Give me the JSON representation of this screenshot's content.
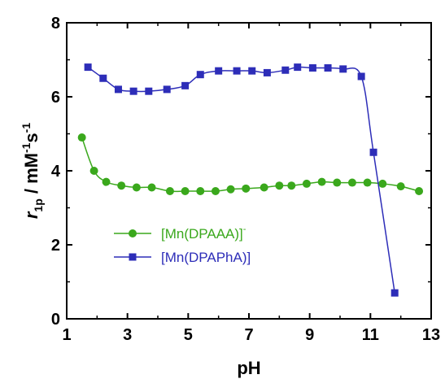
{
  "chart_data": {
    "type": "line",
    "xlabel": "pH",
    "ylabel": {
      "main": "r",
      "sub": "1p",
      "unit_prefix": " / mM",
      "unit_sup1": "-1",
      "unit_mid": "s",
      "unit_sup2": "-1"
    },
    "xlim": [
      1,
      13
    ],
    "ylim": [
      0,
      8
    ],
    "xticks": [
      1,
      3,
      5,
      7,
      9,
      11,
      13
    ],
    "yticks": [
      0,
      2,
      4,
      6,
      8
    ],
    "grid": false,
    "legend_position": "center-left",
    "series": [
      {
        "name": "[Mn(DPAAA)]",
        "name_sup": "-",
        "color": "#3aa81c",
        "marker": "circle",
        "points": [
          [
            1.5,
            4.9
          ],
          [
            1.9,
            4.0
          ],
          [
            2.3,
            3.7
          ],
          [
            2.8,
            3.6
          ],
          [
            3.3,
            3.55
          ],
          [
            3.8,
            3.55
          ],
          [
            4.4,
            3.45
          ],
          [
            4.9,
            3.45
          ],
          [
            5.4,
            3.45
          ],
          [
            5.9,
            3.45
          ],
          [
            6.4,
            3.5
          ],
          [
            6.9,
            3.52
          ],
          [
            7.5,
            3.55
          ],
          [
            8.0,
            3.6
          ],
          [
            8.4,
            3.6
          ],
          [
            8.9,
            3.65
          ],
          [
            9.4,
            3.7
          ],
          [
            9.9,
            3.68
          ],
          [
            10.4,
            3.68
          ],
          [
            10.9,
            3.68
          ],
          [
            11.4,
            3.65
          ],
          [
            12.0,
            3.58
          ],
          [
            12.6,
            3.45
          ]
        ]
      },
      {
        "name": "[Mn(DPAPhA)]",
        "name_sup": "",
        "color": "#2d2db8",
        "marker": "square",
        "points": [
          [
            1.7,
            6.8
          ],
          [
            2.2,
            6.5
          ],
          [
            2.7,
            6.2
          ],
          [
            3.2,
            6.15
          ],
          [
            3.7,
            6.15
          ],
          [
            4.3,
            6.2
          ],
          [
            4.9,
            6.3
          ],
          [
            5.4,
            6.6
          ],
          [
            6.0,
            6.7
          ],
          [
            6.6,
            6.7
          ],
          [
            7.1,
            6.7
          ],
          [
            7.6,
            6.65
          ],
          [
            8.2,
            6.72
          ],
          [
            8.6,
            6.8
          ],
          [
            9.1,
            6.78
          ],
          [
            9.6,
            6.78
          ],
          [
            10.1,
            6.75
          ],
          [
            10.7,
            6.55
          ],
          [
            11.1,
            4.5
          ],
          [
            11.8,
            0.7
          ]
        ]
      }
    ]
  }
}
